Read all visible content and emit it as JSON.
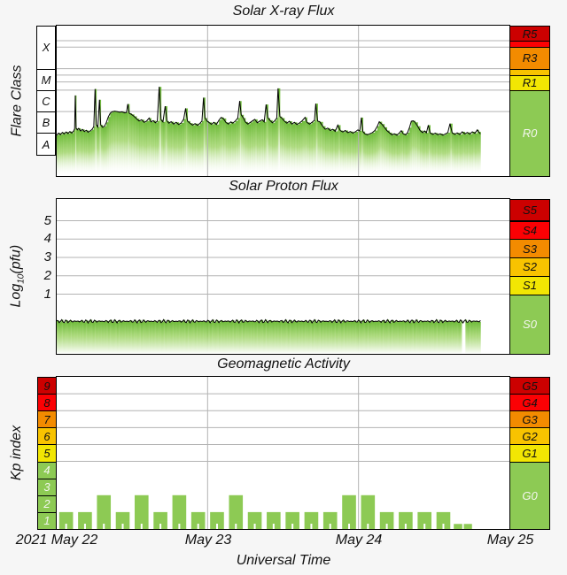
{
  "colors": {
    "background": "#f6f6f6",
    "plot_bg": "#ffffff",
    "grid": "#b3b3b3",
    "trace": "#000000",
    "darkred": "#cc0000",
    "red": "#fb0104",
    "orange": "#f38b00",
    "amber": "#f8c300",
    "yellow": "#f2e603",
    "green": "#8dca54",
    "fill_top": "#68b832",
    "fill_mid": "#9fd468",
    "white_box": "#ffffff",
    "light_text": "#f3f6ee",
    "dark_text": "#111111"
  },
  "x_axis": {
    "tick_labels": [
      "2021 May 22",
      "May 23",
      "May 24",
      "May 25"
    ],
    "title": "Universal Time",
    "hours_span": 72,
    "day_grid_h": [
      24,
      48
    ]
  },
  "chart_data": [
    {
      "id": "xray",
      "type": "line",
      "title": "Solar X-ray Flux",
      "ylabel": "Flare Class",
      "y_scale": "log10 W/m^2",
      "y_range": [
        -9,
        -2
      ],
      "grid_y": [
        -2.7,
        -3,
        -4,
        -4.3,
        -4.62,
        -5,
        -6
      ],
      "data_end_h": 67.4,
      "class_boxes": [
        {
          "label": "X",
          "c": "white_box",
          "t": -2,
          "b": -4
        },
        {
          "label": "M",
          "c": "white_box",
          "t": -4,
          "b": -5
        },
        {
          "label": "C",
          "c": "white_box",
          "t": -5,
          "b": -6
        },
        {
          "label": "B",
          "c": "white_box",
          "t": -6,
          "b": -7
        },
        {
          "label": "A",
          "c": "white_box",
          "t": -7,
          "b": -8
        }
      ],
      "scale_boxes": [
        {
          "label": "R5",
          "c": "darkred",
          "t": -2,
          "b": -2.7
        },
        {
          "label": "",
          "c": "red",
          "t": -2.7,
          "b": -3
        },
        {
          "label": "R3",
          "c": "orange",
          "t": -3,
          "b": -4
        },
        {
          "label": "",
          "c": "amber",
          "t": -4,
          "b": -4.3
        },
        {
          "label": "R1",
          "c": "yellow",
          "t": -4.3,
          "b": -5
        },
        {
          "label": "R0",
          "c": "green",
          "t": -5,
          "b": -9,
          "lt": true
        }
      ],
      "points": [
        [
          0,
          -7.1
        ],
        [
          0.3,
          -7.0
        ],
        [
          0.6,
          -7.07
        ],
        [
          0.9,
          -6.97
        ],
        [
          1.2,
          -7.04
        ],
        [
          1.5,
          -6.95
        ],
        [
          1.8,
          -7.02
        ],
        [
          2.1,
          -6.93
        ],
        [
          2.4,
          -7.0
        ],
        [
          2.7,
          -6.9
        ],
        [
          2.85,
          -6.8
        ],
        [
          2.95,
          -5.25
        ],
        [
          3.1,
          -6.78
        ],
        [
          3.3,
          -6.85
        ],
        [
          3.5,
          -6.78
        ],
        [
          3.8,
          -6.9
        ],
        [
          4.1,
          -6.83
        ],
        [
          4.4,
          -6.93
        ],
        [
          4.7,
          -6.87
        ],
        [
          5,
          -6.96
        ],
        [
          5.3,
          -6.9
        ],
        [
          5.6,
          -6.84
        ],
        [
          5.9,
          -6.7
        ],
        [
          6.1,
          -4.95
        ],
        [
          6.3,
          -6.62
        ],
        [
          6.55,
          -6.72
        ],
        [
          6.8,
          -5.45
        ],
        [
          7,
          -6.62
        ],
        [
          7.3,
          -6.73
        ],
        [
          7.6,
          -6.68
        ],
        [
          7.9,
          -6.5
        ],
        [
          8.2,
          -6.25
        ],
        [
          8.5,
          -6.08
        ],
        [
          8.8,
          -6.01
        ],
        [
          9.2,
          -5.98
        ],
        [
          9.6,
          -6.0
        ],
        [
          10,
          -6.03
        ],
        [
          10.4,
          -6.01
        ],
        [
          10.8,
          -6.06
        ],
        [
          11.1,
          -6.04
        ],
        [
          11.3,
          -5.65
        ],
        [
          11.55,
          -6.08
        ],
        [
          11.9,
          -6.13
        ],
        [
          12.3,
          -6.22
        ],
        [
          12.7,
          -6.33
        ],
        [
          13.1,
          -6.44
        ],
        [
          13.5,
          -6.38
        ],
        [
          13.9,
          -6.5
        ],
        [
          14.3,
          -6.44
        ],
        [
          14.7,
          -6.3
        ],
        [
          15,
          -6.48
        ],
        [
          15.35,
          -6.42
        ],
        [
          15.7,
          -6.52
        ],
        [
          16,
          -6.44
        ],
        [
          16.3,
          -4.85
        ],
        [
          16.6,
          -6.38
        ],
        [
          16.9,
          -6.48
        ],
        [
          17.25,
          -5.75
        ],
        [
          17.55,
          -6.44
        ],
        [
          17.85,
          -6.54
        ],
        [
          18.2,
          -6.47
        ],
        [
          18.6,
          -6.58
        ],
        [
          19,
          -6.5
        ],
        [
          19.4,
          -6.6
        ],
        [
          19.8,
          -6.53
        ],
        [
          20.2,
          -6.35
        ],
        [
          20.5,
          -5.85
        ],
        [
          20.8,
          -6.44
        ],
        [
          21.2,
          -6.54
        ],
        [
          21.6,
          -6.63
        ],
        [
          22,
          -6.56
        ],
        [
          22.4,
          -6.64
        ],
        [
          22.8,
          -6.54
        ],
        [
          23.1,
          -6.44
        ],
        [
          23.35,
          -5.35
        ],
        [
          23.6,
          -6.3
        ],
        [
          23.9,
          -6.44
        ],
        [
          24.2,
          -6.5
        ],
        [
          24.6,
          -6.59
        ],
        [
          25,
          -6.5
        ],
        [
          25.4,
          -6.6
        ],
        [
          25.8,
          -6.4
        ],
        [
          26.15,
          -6.27
        ],
        [
          26.5,
          -6.32
        ],
        [
          26.9,
          -6.5
        ],
        [
          27.3,
          -6.58
        ],
        [
          27.7,
          -6.48
        ],
        [
          28,
          -6.54
        ],
        [
          28.4,
          -6.44
        ],
        [
          28.8,
          -6.3
        ],
        [
          29.1,
          -5.51
        ],
        [
          29.35,
          -6.15
        ],
        [
          29.7,
          -6.3
        ],
        [
          30,
          -6.48
        ],
        [
          30.4,
          -6.58
        ],
        [
          30.8,
          -6.5
        ],
        [
          31.2,
          -6.42
        ],
        [
          31.5,
          -6.36
        ],
        [
          31.9,
          -6.52
        ],
        [
          32.3,
          -6.44
        ],
        [
          32.7,
          -6.38
        ],
        [
          33,
          -6.48
        ],
        [
          33.3,
          -5.67
        ],
        [
          33.6,
          -6.3
        ],
        [
          33.9,
          -6.4
        ],
        [
          34.3,
          -6.52
        ],
        [
          34.7,
          -6.42
        ],
        [
          35,
          -6.3
        ],
        [
          35.2,
          -4.92
        ],
        [
          35.5,
          -6.23
        ],
        [
          35.8,
          -6.3
        ],
        [
          36.2,
          -6.44
        ],
        [
          36.6,
          -6.54
        ],
        [
          37,
          -6.45
        ],
        [
          37.4,
          -6.58
        ],
        [
          37.8,
          -6.5
        ],
        [
          38.2,
          -6.6
        ],
        [
          38.6,
          -6.53
        ],
        [
          39,
          -6.44
        ],
        [
          39.5,
          -6.27
        ],
        [
          39.8,
          -6.5
        ],
        [
          40.2,
          -6.58
        ],
        [
          40.6,
          -6.5
        ],
        [
          41,
          -6.4
        ],
        [
          41.2,
          -5.63
        ],
        [
          41.5,
          -6.44
        ],
        [
          41.85,
          -6.48
        ],
        [
          42.3,
          -6.68
        ],
        [
          42.7,
          -6.82
        ],
        [
          43.1,
          -6.77
        ],
        [
          43.5,
          -6.88
        ],
        [
          43.9,
          -6.82
        ],
        [
          44.3,
          -6.92
        ],
        [
          44.7,
          -6.63
        ],
        [
          45.1,
          -6.88
        ],
        [
          45.5,
          -6.95
        ],
        [
          45.9,
          -6.88
        ],
        [
          46.3,
          -6.98
        ],
        [
          46.7,
          -6.93
        ],
        [
          47.1,
          -7.0
        ],
        [
          47.5,
          -6.94
        ],
        [
          47.9,
          -6.85
        ],
        [
          48.2,
          -6.9
        ],
        [
          48.45,
          -6.28
        ],
        [
          48.7,
          -6.93
        ],
        [
          49,
          -7.03
        ],
        [
          49.4,
          -7.08
        ],
        [
          49.8,
          -7.03
        ],
        [
          50.2,
          -6.98
        ],
        [
          50.6,
          -6.88
        ],
        [
          51,
          -6.68
        ],
        [
          51.3,
          -6.47
        ],
        [
          51.7,
          -6.58
        ],
        [
          52.1,
          -6.73
        ],
        [
          52.5,
          -6.88
        ],
        [
          52.9,
          -6.98
        ],
        [
          53.3,
          -7.08
        ],
        [
          53.7,
          -7.03
        ],
        [
          54.1,
          -7.1
        ],
        [
          54.5,
          -6.99
        ],
        [
          54.8,
          -6.89
        ],
        [
          55.1,
          -7.03
        ],
        [
          55.5,
          -7.08
        ],
        [
          55.8,
          -6.98
        ],
        [
          56.1,
          -6.75
        ],
        [
          56.4,
          -6.45
        ],
        [
          56.7,
          -6.43
        ],
        [
          57,
          -6.5
        ],
        [
          57.4,
          -6.68
        ],
        [
          57.8,
          -6.88
        ],
        [
          58.2,
          -6.98
        ],
        [
          58.5,
          -6.9
        ],
        [
          58.8,
          -6.99
        ],
        [
          59.1,
          -6.63
        ],
        [
          59.4,
          -6.99
        ],
        [
          59.8,
          -7.06
        ],
        [
          60.2,
          -7.0
        ],
        [
          60.6,
          -7.08
        ],
        [
          61,
          -7.03
        ],
        [
          61.4,
          -7.1
        ],
        [
          61.8,
          -7.04
        ],
        [
          62.2,
          -6.98
        ],
        [
          62.55,
          -6.56
        ],
        [
          62.9,
          -6.99
        ],
        [
          63.3,
          -7.06
        ],
        [
          63.7,
          -6.99
        ],
        [
          64.1,
          -7.07
        ],
        [
          64.5,
          -6.94
        ],
        [
          64.9,
          -7.04
        ],
        [
          65.3,
          -6.97
        ],
        [
          65.7,
          -7.05
        ],
        [
          66.1,
          -6.94
        ],
        [
          66.5,
          -7.01
        ],
        [
          66.9,
          -6.85
        ],
        [
          67.1,
          -6.94
        ],
        [
          67.4,
          -7.04
        ]
      ]
    },
    {
      "id": "proton",
      "type": "line",
      "title": "Solar Proton Flux",
      "ylabel_pre": "Log",
      "ylabel_sub": "10",
      "ylabel_post": "(pfu)",
      "y_range": [
        -2.25,
        6.18
      ],
      "grid_y": [
        1,
        2,
        3,
        4,
        5
      ],
      "ytick_labels": [
        "5",
        "4",
        "3",
        "2",
        "1"
      ],
      "start_h": 0,
      "end_h": 67.4,
      "step_h": 0.2,
      "base_log_pfu": -0.48,
      "noise_amp_1": 0.05,
      "noise_amp_2": 0.04,
      "gap_h": [
        64.5,
        64.95
      ],
      "scale_boxes": [
        {
          "label": "S5",
          "c": "darkred",
          "t": 6.18,
          "b": 5
        },
        {
          "label": "S4",
          "c": "red",
          "t": 5,
          "b": 4
        },
        {
          "label": "S3",
          "c": "orange",
          "t": 4,
          "b": 3
        },
        {
          "label": "S2",
          "c": "amber",
          "t": 3,
          "b": 2
        },
        {
          "label": "S1",
          "c": "yellow",
          "t": 2,
          "b": 1
        },
        {
          "label": "S0",
          "c": "green",
          "t": 1,
          "b": -2.25,
          "lt": true
        }
      ]
    },
    {
      "id": "kp",
      "type": "bar",
      "title": "Geomagnetic Activity",
      "ylabel": "Kp index",
      "y_range": [
        0,
        9
      ],
      "grid_y": [
        4,
        5,
        6,
        7,
        8
      ],
      "bars": [
        [
          0.4,
          2.2,
          1
        ],
        [
          3.4,
          2.2,
          1
        ],
        [
          6.4,
          2.2,
          2
        ],
        [
          9.4,
          2.2,
          1
        ],
        [
          12.4,
          2.2,
          2
        ],
        [
          15.4,
          2.2,
          1
        ],
        [
          18.4,
          2.2,
          2
        ],
        [
          21.4,
          2.2,
          1
        ],
        [
          24.4,
          2.2,
          1
        ],
        [
          27.4,
          2.2,
          2
        ],
        [
          30.4,
          2.2,
          1
        ],
        [
          33.4,
          2.2,
          1
        ],
        [
          36.4,
          2.2,
          1
        ],
        [
          39.4,
          2.2,
          1
        ],
        [
          42.4,
          2.2,
          1
        ],
        [
          45.4,
          2.2,
          2
        ],
        [
          48.4,
          2.2,
          2
        ],
        [
          51.4,
          2.2,
          1
        ],
        [
          54.4,
          2.2,
          1
        ],
        [
          57.4,
          2.2,
          1
        ],
        [
          60.4,
          2.2,
          1
        ],
        [
          63.15,
          1.35,
          0.3
        ],
        [
          64.75,
          1.3,
          0.3
        ]
      ],
      "kp_boxes": [
        {
          "label": "9",
          "c": "darkred",
          "t": 9,
          "b": 8
        },
        {
          "label": "8",
          "c": "red",
          "t": 8,
          "b": 7
        },
        {
          "label": "7",
          "c": "orange",
          "t": 7,
          "b": 6
        },
        {
          "label": "6",
          "c": "amber",
          "t": 6,
          "b": 5
        },
        {
          "label": "5",
          "c": "yellow",
          "t": 5,
          "b": 4
        },
        {
          "label": "4",
          "c": "green",
          "t": 4,
          "b": 3,
          "lt": true
        },
        {
          "label": "3",
          "c": "green",
          "t": 3,
          "b": 2,
          "lt": true
        },
        {
          "label": "2",
          "c": "green",
          "t": 2,
          "b": 1,
          "lt": true
        },
        {
          "label": "1",
          "c": "green",
          "t": 1,
          "b": 0,
          "lt": true
        }
      ],
      "scale_boxes": [
        {
          "label": "G5",
          "c": "darkred",
          "t": 9,
          "b": 8
        },
        {
          "label": "G4",
          "c": "red",
          "t": 8,
          "b": 7
        },
        {
          "label": "G3",
          "c": "orange",
          "t": 7,
          "b": 6
        },
        {
          "label": "G2",
          "c": "amber",
          "t": 6,
          "b": 5
        },
        {
          "label": "G1",
          "c": "yellow",
          "t": 5,
          "b": 4
        },
        {
          "label": "G0",
          "c": "green",
          "t": 4,
          "b": 0,
          "lt": true
        }
      ]
    }
  ]
}
